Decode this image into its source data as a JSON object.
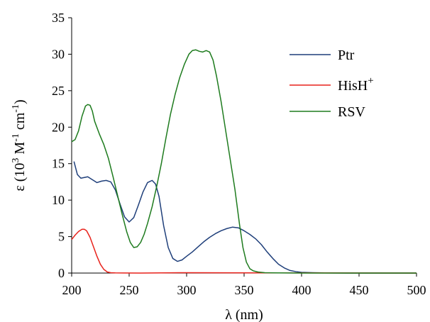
{
  "chart_data": {
    "type": "line",
    "title": "",
    "xlabel": "λ (nm)",
    "ylabel_parts": {
      "main": "ε (10",
      "sup1": "3",
      "mid": " M",
      "sup2": "-1",
      "mid2": " cm",
      "sup3": "-1",
      "end": ")"
    },
    "xlim": [
      200,
      500
    ],
    "ylim": [
      0,
      35
    ],
    "xticks": [
      200,
      250,
      300,
      350,
      400,
      450,
      500
    ],
    "yticks": [
      0,
      5,
      10,
      15,
      20,
      25,
      30,
      35
    ],
    "grid": false,
    "legend_position": "top-right",
    "series": [
      {
        "name": "Ptr",
        "name_base": "Ptr",
        "name_sup": "",
        "color": "#1f3f7a",
        "x": [
          202,
          205,
          208,
          211,
          214,
          218,
          222,
          226,
          230,
          234,
          238,
          242,
          246,
          250,
          254,
          258,
          262,
          266,
          270,
          273,
          276,
          280,
          284,
          288,
          292,
          296,
          300,
          305,
          310,
          315,
          320,
          325,
          330,
          335,
          340,
          345,
          350,
          355,
          360,
          365,
          370,
          375,
          380,
          385,
          390,
          395,
          400,
          410,
          420,
          430,
          440,
          460,
          480,
          500
        ],
        "y": [
          15.3,
          13.5,
          13.0,
          13.1,
          13.2,
          12.8,
          12.4,
          12.6,
          12.7,
          12.5,
          11.4,
          9.5,
          7.7,
          7.0,
          7.6,
          9.3,
          11.1,
          12.4,
          12.7,
          12.2,
          10.5,
          6.5,
          3.5,
          2.0,
          1.6,
          1.8,
          2.3,
          2.9,
          3.6,
          4.3,
          4.9,
          5.4,
          5.8,
          6.1,
          6.3,
          6.2,
          5.8,
          5.3,
          4.7,
          3.9,
          2.9,
          2.0,
          1.2,
          0.7,
          0.35,
          0.2,
          0.1,
          0.05,
          0.02,
          0.01,
          0,
          0,
          0,
          0
        ]
      },
      {
        "name": "HisH+",
        "name_base": "HisH",
        "name_sup": "+",
        "color": "#e8221b",
        "x": [
          200,
          203,
          206,
          209,
          211,
          213,
          216,
          219,
          222,
          225,
          228,
          231,
          234,
          238,
          245,
          260,
          300,
          400,
          500
        ],
        "y": [
          4.6,
          5.2,
          5.7,
          6.0,
          6.0,
          5.8,
          4.9,
          3.6,
          2.3,
          1.2,
          0.5,
          0.15,
          0.05,
          0.02,
          0.01,
          0,
          0.05,
          0.02,
          0
        ]
      },
      {
        "name": "RSV",
        "name_base": "RSV",
        "name_sup": "",
        "color": "#1e7b1e",
        "x": [
          200,
          203,
          206,
          209,
          212,
          214,
          216,
          218,
          220,
          224,
          228,
          232,
          236,
          240,
          244,
          248,
          251,
          254,
          257,
          260,
          263,
          266,
          270,
          274,
          278,
          282,
          286,
          290,
          294,
          298,
          302,
          305,
          308,
          311,
          314,
          317,
          320,
          323,
          326,
          330,
          334,
          338,
          342,
          346,
          349,
          352,
          355,
          358,
          362,
          368,
          380,
          400,
          450,
          500
        ],
        "y": [
          18.0,
          18.3,
          19.5,
          21.5,
          22.9,
          23.1,
          23.0,
          22.2,
          20.8,
          19.1,
          17.6,
          15.7,
          13.2,
          10.6,
          8.0,
          5.6,
          4.2,
          3.5,
          3.6,
          4.2,
          5.3,
          6.8,
          9.1,
          11.9,
          15.0,
          18.5,
          21.8,
          24.5,
          26.8,
          28.6,
          30.0,
          30.5,
          30.6,
          30.4,
          30.3,
          30.5,
          30.3,
          29.2,
          27.0,
          23.5,
          19.5,
          15.5,
          11.5,
          6.7,
          3.5,
          1.5,
          0.6,
          0.3,
          0.15,
          0.05,
          0.02,
          0,
          0,
          0
        ]
      }
    ]
  }
}
